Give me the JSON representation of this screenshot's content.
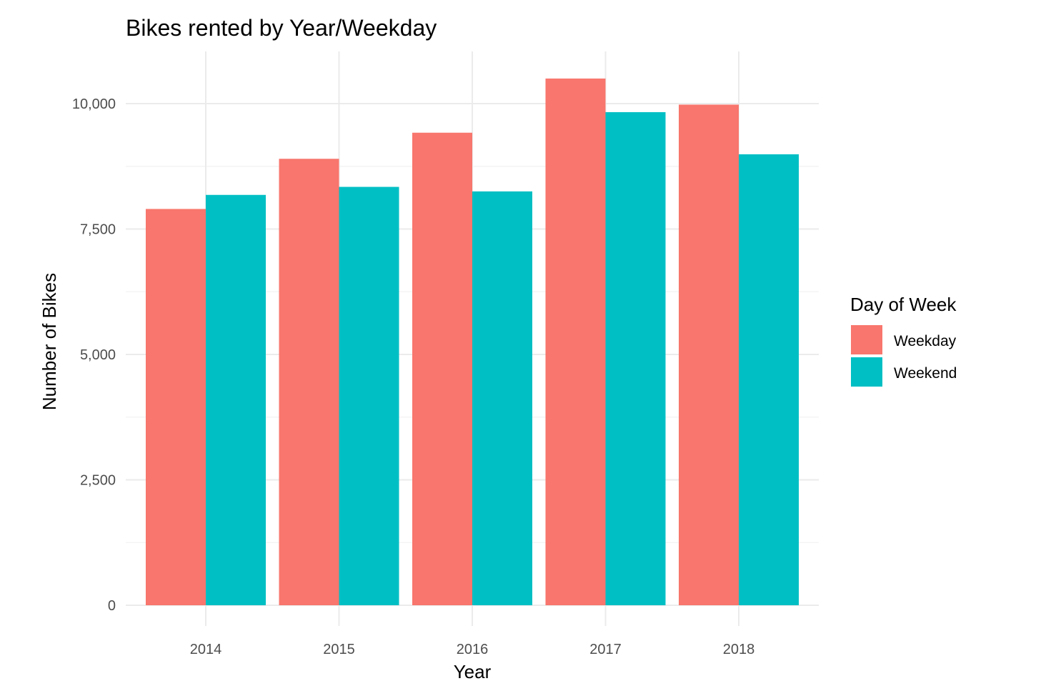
{
  "chart_data": {
    "type": "bar",
    "title": "Bikes rented by Year/Weekday",
    "xlabel": "Year",
    "ylabel": "Number of Bikes",
    "categories": [
      "2014",
      "2015",
      "2016",
      "2017",
      "2018"
    ],
    "series": [
      {
        "name": "Weekday",
        "color": "#F8766D",
        "values": [
          7900,
          8900,
          9420,
          10500,
          9980
        ]
      },
      {
        "name": "Weekend",
        "color": "#00BFC4",
        "values": [
          8180,
          8340,
          8250,
          9830,
          8990
        ]
      }
    ],
    "ylim": [
      0,
      11000
    ],
    "yticks": [
      0,
      2500,
      5000,
      7500,
      10000
    ],
    "ytick_labels": [
      "0",
      "2,500",
      "5,000",
      "7,500",
      "10,000"
    ],
    "grid": true,
    "legend": {
      "title": "Day of Week",
      "position": "right",
      "items": [
        "Weekday",
        "Weekend"
      ]
    }
  }
}
